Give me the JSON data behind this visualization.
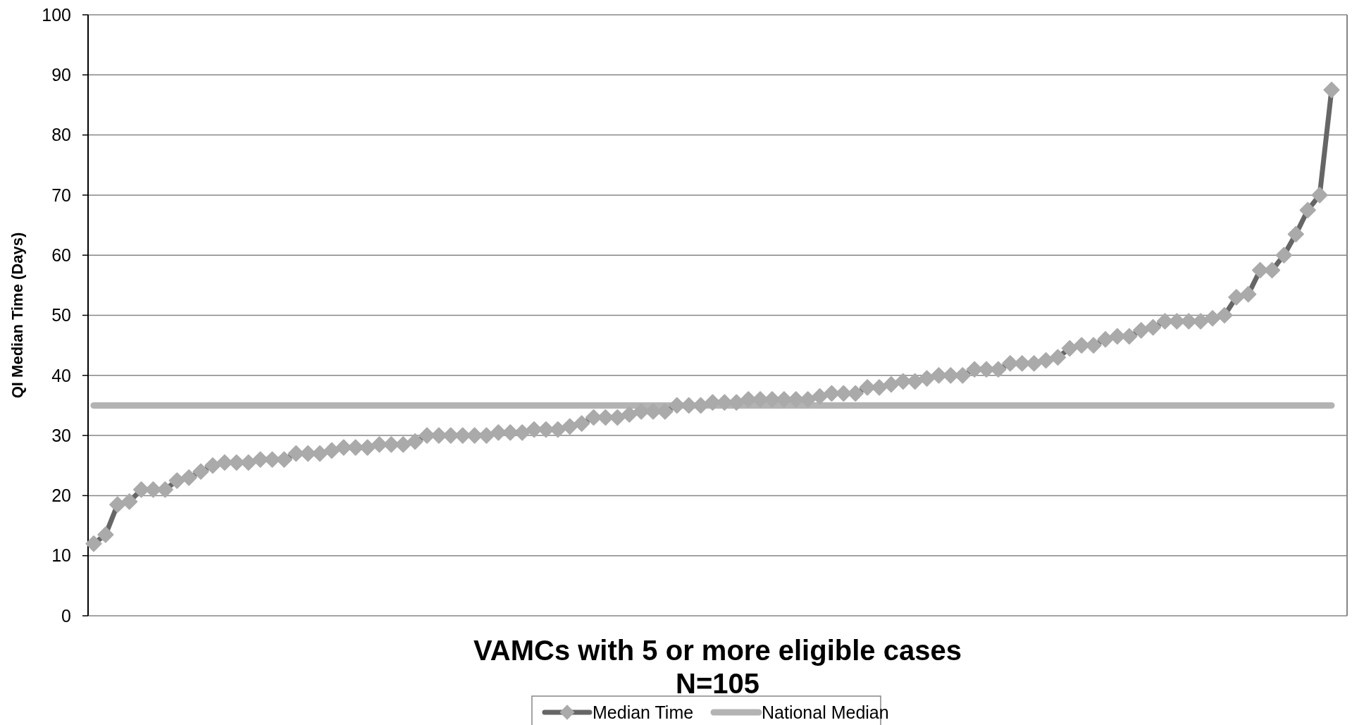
{
  "chart_data": {
    "type": "line",
    "ylabel": "QI Median Time (Days)",
    "xlabel": "VAMCs with 5 or more eligible cases\nN=105",
    "categories": [
      null,
      null,
      null,
      null,
      null,
      null,
      null,
      null,
      null,
      null,
      null,
      null,
      null,
      null,
      null,
      null,
      null,
      null,
      null,
      null,
      null,
      null,
      null,
      null,
      null,
      null,
      null,
      null,
      null,
      null,
      null,
      null,
      null,
      null,
      null,
      null,
      null,
      null,
      null,
      null,
      null,
      null,
      null,
      null,
      null,
      null,
      null,
      null,
      null,
      null,
      null,
      null,
      null,
      null,
      null,
      null,
      null,
      null,
      null,
      null,
      null,
      null,
      null,
      null,
      null,
      null,
      null,
      null,
      null,
      null,
      null,
      null,
      null,
      null,
      null,
      null,
      null,
      null,
      null,
      null,
      null,
      null,
      null,
      null,
      null,
      null,
      null,
      null,
      null,
      null,
      null,
      null,
      null,
      null,
      null,
      null,
      null,
      null,
      null,
      null,
      null,
      null,
      null,
      null,
      null
    ],
    "series": [
      {
        "name": "Median Time",
        "color": "#666666",
        "marker": "diamond",
        "values": [
          12,
          13.5,
          18.5,
          19,
          21,
          21,
          21,
          22.5,
          23,
          24,
          25,
          25.5,
          25.5,
          25.5,
          26,
          26,
          26,
          27,
          27,
          27,
          27.5,
          28,
          28,
          28,
          28.5,
          28.5,
          28.5,
          29,
          30,
          30,
          30,
          30,
          30,
          30,
          30.5,
          30.5,
          30.5,
          31,
          31,
          31,
          31.5,
          32,
          33,
          33,
          33,
          33.5,
          34,
          34,
          34,
          35,
          35,
          35,
          35.5,
          35.5,
          35.5,
          36,
          36,
          36,
          36,
          36,
          36,
          36.5,
          37,
          37,
          37,
          38,
          38,
          38.5,
          39,
          39,
          39.5,
          40,
          40,
          40,
          41,
          41,
          41,
          42,
          42,
          42,
          42.5,
          43,
          44.5,
          45,
          45,
          46,
          46.5,
          46.5,
          47.5,
          48,
          49,
          49,
          49,
          49,
          49.5,
          50,
          53,
          53.5,
          57.5,
          57.5,
          60,
          63.5,
          67.5,
          70,
          87.5
        ]
      },
      {
        "name": "National Median",
        "color": "#b3b3b3",
        "marker": "none",
        "values": [
          35,
          35,
          35,
          35,
          35,
          35,
          35,
          35,
          35,
          35,
          35,
          35,
          35,
          35,
          35,
          35,
          35,
          35,
          35,
          35,
          35,
          35,
          35,
          35,
          35,
          35,
          35,
          35,
          35,
          35,
          35,
          35,
          35,
          35,
          35,
          35,
          35,
          35,
          35,
          35,
          35,
          35,
          35,
          35,
          35,
          35,
          35,
          35,
          35,
          35,
          35,
          35,
          35,
          35,
          35,
          35,
          35,
          35,
          35,
          35,
          35,
          35,
          35,
          35,
          35,
          35,
          35,
          35,
          35,
          35,
          35,
          35,
          35,
          35,
          35,
          35,
          35,
          35,
          35,
          35,
          35,
          35,
          35,
          35,
          35,
          35,
          35,
          35,
          35,
          35,
          35,
          35,
          35,
          35,
          35,
          35,
          35,
          35,
          35,
          35,
          35,
          35,
          35,
          35,
          35
        ]
      }
    ],
    "ylim": [
      0,
      100
    ],
    "yticks": [
      0,
      10,
      20,
      30,
      40,
      50,
      60,
      70,
      80,
      90,
      100
    ],
    "grid": "y",
    "legend": "bottom"
  }
}
